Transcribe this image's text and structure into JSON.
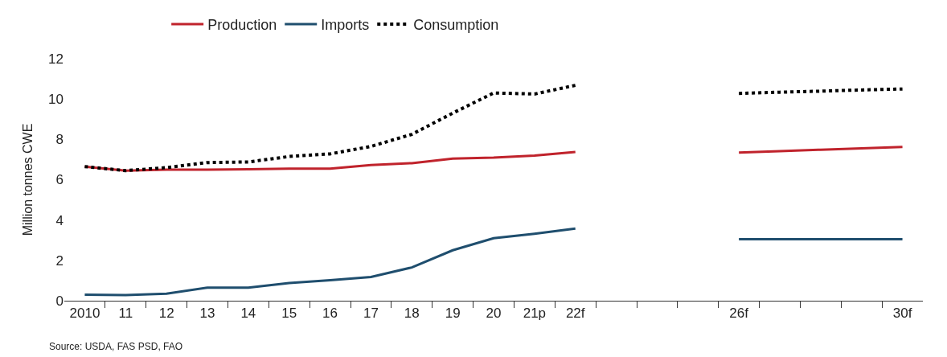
{
  "chart_data": {
    "type": "line",
    "ylabel": "Million tonnes CWE",
    "categories": [
      "2010",
      "11",
      "12",
      "13",
      "14",
      "15",
      "16",
      "17",
      "18",
      "19",
      "20",
      "21p",
      "22f",
      null,
      null,
      null,
      "26f",
      null,
      null,
      null,
      "30f"
    ],
    "series": [
      {
        "name": "Production",
        "color": "#c0232c",
        "line_style": "solid",
        "values": [
          6.65,
          6.45,
          6.5,
          6.5,
          6.52,
          6.55,
          6.55,
          6.73,
          6.82,
          7.05,
          7.1,
          7.2,
          7.38,
          null,
          null,
          null,
          7.35,
          7.42,
          7.49,
          7.55,
          7.62
        ]
      },
      {
        "name": "Imports",
        "color": "#1f4e6e",
        "line_style": "solid",
        "values": [
          0.3,
          0.28,
          0.35,
          0.65,
          0.65,
          0.88,
          1.02,
          1.18,
          1.65,
          2.5,
          3.1,
          3.32,
          3.58,
          null,
          null,
          null,
          3.05,
          3.05,
          3.05,
          3.05,
          3.05
        ]
      },
      {
        "name": "Consumption",
        "color": "#000000",
        "line_style": "dotted",
        "values": [
          6.65,
          6.45,
          6.6,
          6.85,
          6.88,
          7.15,
          7.28,
          7.65,
          8.25,
          9.3,
          10.3,
          10.25,
          10.68,
          null,
          null,
          null,
          10.28,
          10.34,
          10.39,
          10.45,
          10.5
        ]
      }
    ],
    "ylim": [
      0,
      12
    ],
    "yticks": [
      0,
      2,
      4,
      6,
      8,
      10,
      12
    ],
    "legend": "top",
    "marker": "none",
    "annotations": [
      "Source: USDA, FAS PSD, FAO"
    ]
  }
}
